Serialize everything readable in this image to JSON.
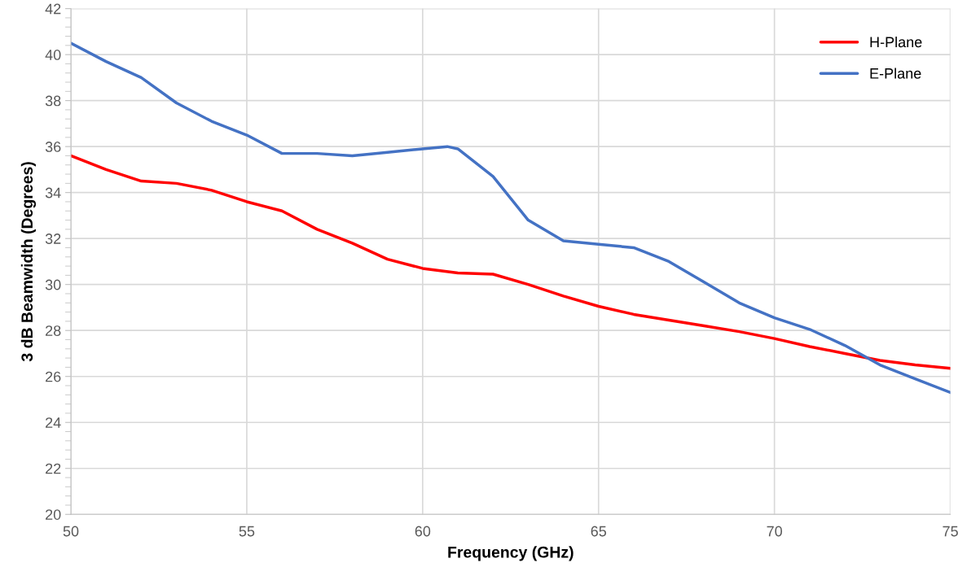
{
  "chart_data": {
    "type": "line",
    "xlabel": "Frequency (GHz)",
    "ylabel": "3 dB Beamwidth (Degrees)",
    "xlim": [
      50,
      75
    ],
    "xticks": [
      50,
      55,
      60,
      65,
      70,
      75
    ],
    "ylim": [
      20,
      42
    ],
    "yticks": [
      20,
      22,
      24,
      26,
      28,
      30,
      32,
      34,
      36,
      38,
      40,
      42
    ],
    "grid": true,
    "legend": "top right",
    "marker": "none",
    "line_style": "solid",
    "series": [
      {
        "name": "H-Plane",
        "color": "#ff0000",
        "x": [
          50,
          51,
          52,
          53,
          54,
          55,
          56,
          57,
          58,
          59,
          60,
          61,
          62,
          63,
          64,
          65,
          66,
          67,
          68,
          69,
          70,
          71,
          72,
          73,
          74,
          75
        ],
        "values": [
          35.6,
          35.0,
          34.5,
          34.4,
          34.1,
          33.6,
          33.2,
          32.4,
          31.8,
          31.1,
          30.7,
          30.5,
          30.45,
          30.0,
          29.5,
          29.05,
          28.7,
          28.45,
          28.2,
          27.95,
          27.65,
          27.3,
          27.0,
          26.7,
          26.5,
          26.35
        ]
      },
      {
        "name": "E-Plane",
        "color": "#4472c4",
        "x": [
          50,
          51,
          52,
          53,
          54,
          55,
          56,
          57,
          58,
          59,
          60,
          60.7,
          61,
          62,
          63,
          64,
          65,
          66,
          67,
          68,
          69,
          70,
          71,
          72,
          73,
          74,
          75
        ],
        "values": [
          40.5,
          39.7,
          39.0,
          37.9,
          37.1,
          36.5,
          35.7,
          35.7,
          35.6,
          35.75,
          35.9,
          36.0,
          35.9,
          34.7,
          32.8,
          31.9,
          31.75,
          31.6,
          31.0,
          30.1,
          29.2,
          28.55,
          28.05,
          27.35,
          26.5,
          25.9,
          25.3
        ]
      }
    ]
  }
}
